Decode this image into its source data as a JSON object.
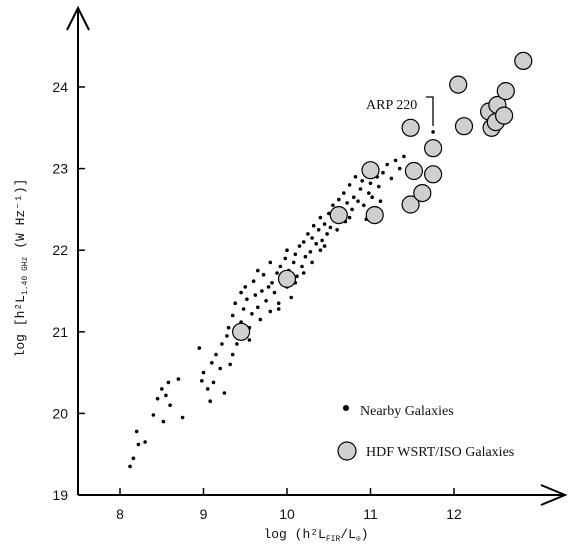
{
  "chart_data": {
    "type": "scatter",
    "title": "",
    "xlabel": "log (h²L_FIR/L⊙)",
    "ylabel": "log [h²L_1.40 GHz (W Hz⁻¹)]",
    "xlim": [
      7.5,
      13.2
    ],
    "ylim": [
      19,
      24.8
    ],
    "x_ticks": [
      "8",
      "9",
      "10",
      "11",
      "12"
    ],
    "y_ticks": [
      "19",
      "20",
      "21",
      "22",
      "23",
      "24"
    ],
    "grid": false,
    "legend_position": "bottom-right",
    "series": [
      {
        "name": "Nearby Galaxies",
        "marker": "dot",
        "color": "#000000",
        "points": [
          [
            8.12,
            19.35
          ],
          [
            8.16,
            19.45
          ],
          [
            8.22,
            19.62
          ],
          [
            8.2,
            19.78
          ],
          [
            8.3,
            19.65
          ],
          [
            8.4,
            19.98
          ],
          [
            8.45,
            20.18
          ],
          [
            8.5,
            20.3
          ],
          [
            8.58,
            20.38
          ],
          [
            8.52,
            19.9
          ],
          [
            8.6,
            20.1
          ],
          [
            8.7,
            20.42
          ],
          [
            8.75,
            19.95
          ],
          [
            8.55,
            20.22
          ],
          [
            8.95,
            20.8
          ],
          [
            9.0,
            20.5
          ],
          [
            9.05,
            20.3
          ],
          [
            9.08,
            20.15
          ],
          [
            9.1,
            20.62
          ],
          [
            8.98,
            20.4
          ],
          [
            9.12,
            20.38
          ],
          [
            9.15,
            20.72
          ],
          [
            9.2,
            20.55
          ],
          [
            9.22,
            20.85
          ],
          [
            9.28,
            20.95
          ],
          [
            9.3,
            21.05
          ],
          [
            9.32,
            20.6
          ],
          [
            9.35,
            21.2
          ],
          [
            9.38,
            21.35
          ],
          [
            9.4,
            20.85
          ],
          [
            9.42,
            21.0
          ],
          [
            9.45,
            21.12
          ],
          [
            9.48,
            21.28
          ],
          [
            9.5,
            21.55
          ],
          [
            9.52,
            21.4
          ],
          [
            9.55,
            21.05
          ],
          [
            9.58,
            21.22
          ],
          [
            9.6,
            21.62
          ],
          [
            9.62,
            21.45
          ],
          [
            9.65,
            21.3
          ],
          [
            9.68,
            21.15
          ],
          [
            9.7,
            21.5
          ],
          [
            9.72,
            21.7
          ],
          [
            9.75,
            21.38
          ],
          [
            9.78,
            21.55
          ],
          [
            9.8,
            21.25
          ],
          [
            9.82,
            21.6
          ],
          [
            9.85,
            21.48
          ],
          [
            9.88,
            21.72
          ],
          [
            9.9,
            21.35
          ],
          [
            9.92,
            21.8
          ],
          [
            9.95,
            21.62
          ],
          [
            9.98,
            21.9
          ],
          [
            10.0,
            21.55
          ],
          [
            10.02,
            21.75
          ],
          [
            10.05,
            21.42
          ],
          [
            10.08,
            21.85
          ],
          [
            10.1,
            21.95
          ],
          [
            10.12,
            21.68
          ],
          [
            10.15,
            22.05
          ],
          [
            10.18,
            21.8
          ],
          [
            10.2,
            22.1
          ],
          [
            10.22,
            21.92
          ],
          [
            10.25,
            22.2
          ],
          [
            10.28,
            21.98
          ],
          [
            10.3,
            22.15
          ],
          [
            10.32,
            22.3
          ],
          [
            10.35,
            22.08
          ],
          [
            10.38,
            22.25
          ],
          [
            10.4,
            22.4
          ],
          [
            10.42,
            22.12
          ],
          [
            10.45,
            22.32
          ],
          [
            10.48,
            22.2
          ],
          [
            10.5,
            22.45
          ],
          [
            10.52,
            22.28
          ],
          [
            10.55,
            22.55
          ],
          [
            10.58,
            22.38
          ],
          [
            10.6,
            22.5
          ],
          [
            10.62,
            22.62
          ],
          [
            10.65,
            22.42
          ],
          [
            10.68,
            22.7
          ],
          [
            10.7,
            22.35
          ],
          [
            10.72,
            22.58
          ],
          [
            10.75,
            22.8
          ],
          [
            10.78,
            22.5
          ],
          [
            10.8,
            22.65
          ],
          [
            10.82,
            22.9
          ],
          [
            10.85,
            22.6
          ],
          [
            10.88,
            22.75
          ],
          [
            10.9,
            22.85
          ],
          [
            10.92,
            22.55
          ],
          [
            10.95,
            22.95
          ],
          [
            10.98,
            22.7
          ],
          [
            11.0,
            22.82
          ],
          [
            11.02,
            22.65
          ],
          [
            11.05,
            23.0
          ],
          [
            11.08,
            22.9
          ],
          [
            11.1,
            22.78
          ],
          [
            11.12,
            22.6
          ],
          [
            11.15,
            22.95
          ],
          [
            11.2,
            23.05
          ],
          [
            11.25,
            22.88
          ],
          [
            11.3,
            23.1
          ],
          [
            11.35,
            23.0
          ],
          [
            11.05,
            22.45
          ],
          [
            10.95,
            22.38
          ],
          [
            9.25,
            20.25
          ],
          [
            9.45,
            21.48
          ],
          [
            9.65,
            21.75
          ],
          [
            9.8,
            21.85
          ],
          [
            10.0,
            22.0
          ],
          [
            10.1,
            21.6
          ],
          [
            10.3,
            21.85
          ],
          [
            10.45,
            22.05
          ],
          [
            10.6,
            22.25
          ],
          [
            10.75,
            22.4
          ],
          [
            9.55,
            20.9
          ],
          [
            9.35,
            20.72
          ],
          [
            9.9,
            21.28
          ],
          [
            10.2,
            21.72
          ],
          [
            10.4,
            22.0
          ],
          [
            11.4,
            23.15
          ],
          [
            11.45,
            22.95
          ],
          [
            11.5,
            23.05
          ],
          [
            11.75,
            23.45
          ]
        ]
      },
      {
        "name": "HDF WSRT/ISO Galaxies",
        "marker": "circle",
        "color": "#cfcfcf",
        "points": [
          [
            9.45,
            21.0
          ],
          [
            10.0,
            21.65
          ],
          [
            10.62,
            22.43
          ],
          [
            11.0,
            22.98
          ],
          [
            11.05,
            22.43
          ],
          [
            11.48,
            22.56
          ],
          [
            11.48,
            23.5
          ],
          [
            11.52,
            22.97
          ],
          [
            11.62,
            22.7
          ],
          [
            11.75,
            22.93
          ],
          [
            11.75,
            23.25
          ],
          [
            12.05,
            24.03
          ],
          [
            12.12,
            23.52
          ],
          [
            12.42,
            23.7
          ],
          [
            12.45,
            23.5
          ],
          [
            12.5,
            23.57
          ],
          [
            12.52,
            23.78
          ],
          [
            12.6,
            23.65
          ],
          [
            12.62,
            23.95
          ],
          [
            12.83,
            24.32
          ]
        ]
      }
    ],
    "annotations": [
      {
        "text": "ARP 220",
        "x": 11.75,
        "y": 23.45
      }
    ]
  }
}
